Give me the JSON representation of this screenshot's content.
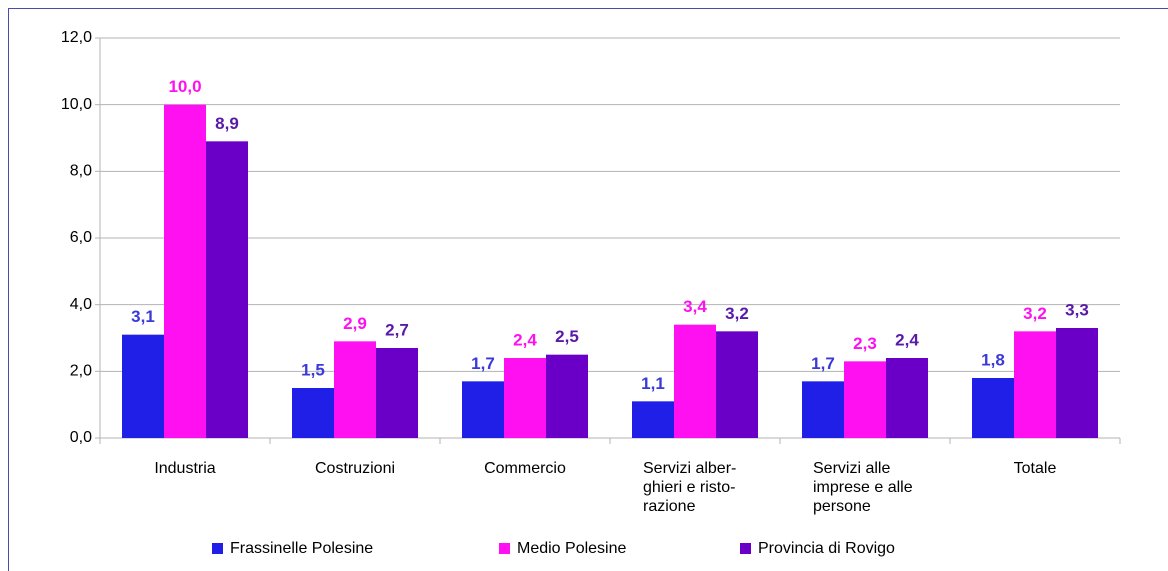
{
  "chart_data": {
    "type": "bar",
    "categories": [
      "Industria",
      "Costruzioni",
      "Commercio",
      "Servizi alber-\nghieri e risto-\nrazione",
      "Servizi alle\nimprese e alle\npersone",
      "Totale"
    ],
    "series": [
      {
        "name": "Frassinelle Polesine",
        "color": "#1f1fe8",
        "label_color": "#3a3ad8",
        "values": [
          3.1,
          1.5,
          1.7,
          1.1,
          1.7,
          1.8
        ],
        "value_labels": [
          "3,1",
          "1,5",
          "1,7",
          "1,1",
          "1,7",
          "1,8"
        ]
      },
      {
        "name": "Medio Polesine",
        "color": "#ff10f0",
        "label_color": "#ff10f0",
        "values": [
          10.0,
          2.9,
          2.4,
          3.4,
          2.3,
          3.2
        ],
        "value_labels": [
          "10,0",
          "2,9",
          "2,4",
          "3,4",
          "2,3",
          "3,2"
        ]
      },
      {
        "name": "Provincia di Rovigo",
        "color": "#6a00c8",
        "label_color": "#5a1aa8",
        "values": [
          8.9,
          2.7,
          2.5,
          3.2,
          2.4,
          3.3
        ],
        "value_labels": [
          "8,9",
          "2,7",
          "2,5",
          "3,2",
          "2,4",
          "3,3"
        ]
      }
    ],
    "ylim": [
      0,
      12
    ],
    "yticks": [
      {
        "value": 0,
        "label": "0,0"
      },
      {
        "value": 2,
        "label": "2,0"
      },
      {
        "value": 4,
        "label": "4,0"
      },
      {
        "value": 6,
        "label": "6,0"
      },
      {
        "value": 8,
        "label": "8,0"
      },
      {
        "value": 10,
        "label": "10,0"
      },
      {
        "value": 12,
        "label": "12,0"
      }
    ],
    "grid": true,
    "legend": "bottom"
  }
}
